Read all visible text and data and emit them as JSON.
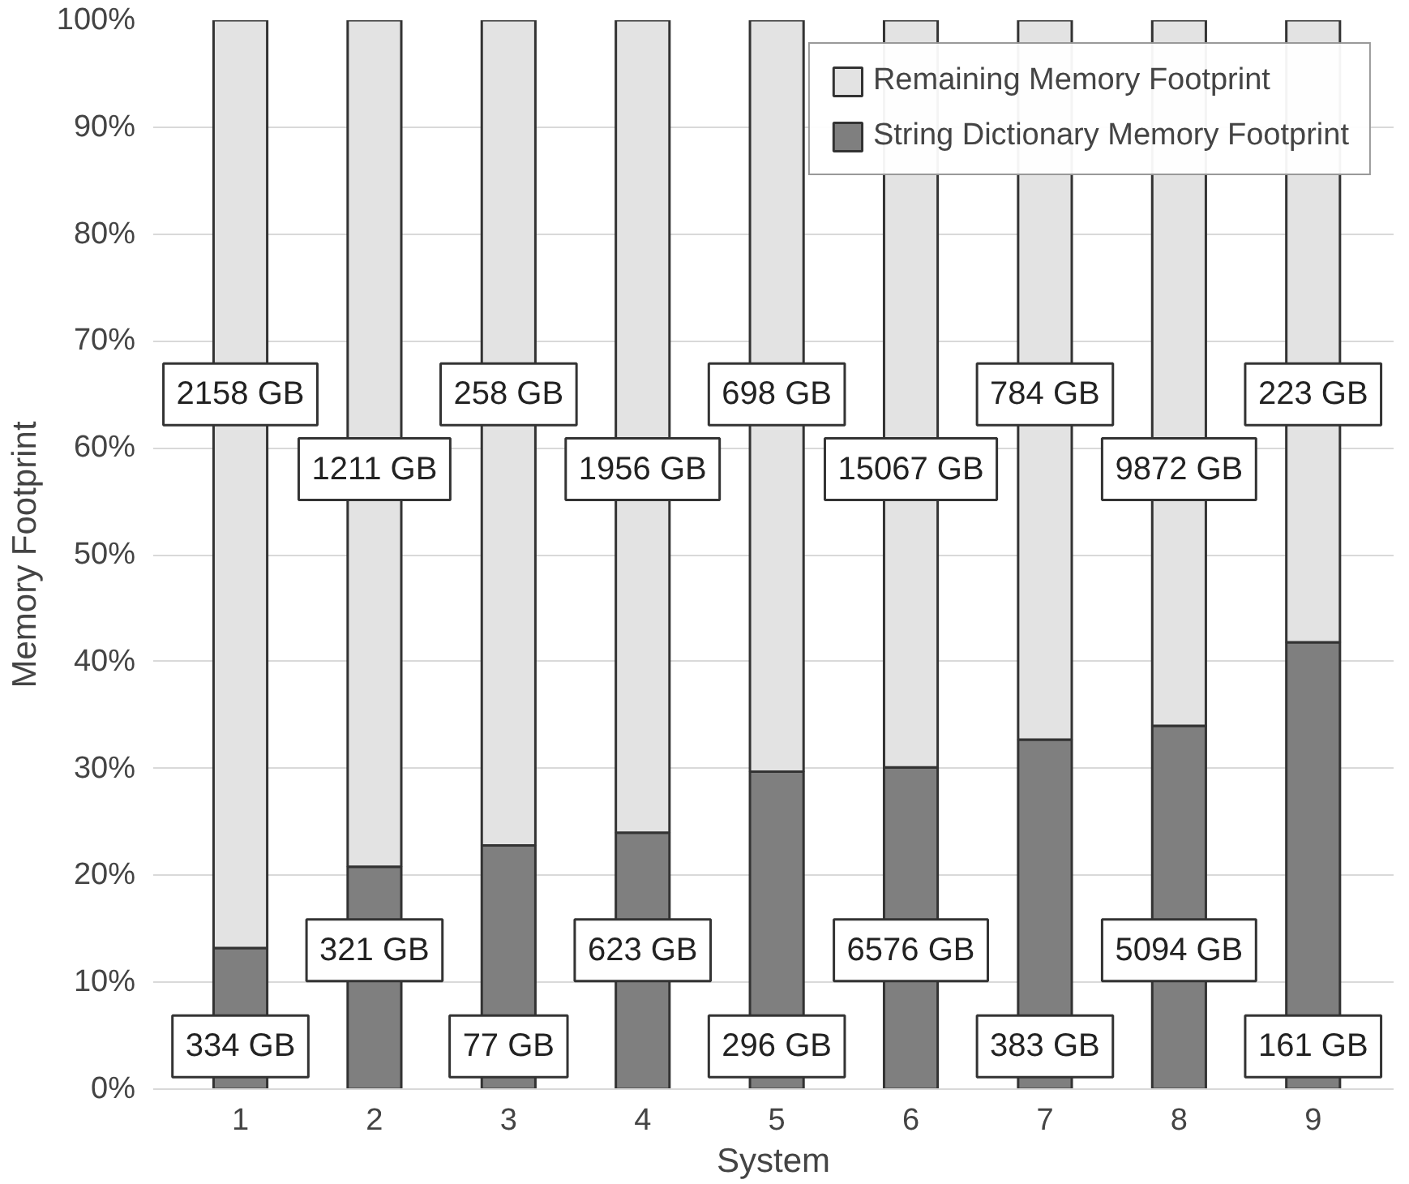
{
  "chart_data": {
    "type": "bar",
    "stacked": true,
    "xlabel": "System",
    "ylabel": "Memory Footprint",
    "categories": [
      "1",
      "2",
      "3",
      "4",
      "5",
      "6",
      "7",
      "8",
      "9"
    ],
    "series": [
      {
        "name": "String Dictionary Memory Footprint",
        "color": "#7f7f7f",
        "values": [
          13.2,
          20.8,
          22.8,
          24.0,
          29.7,
          30.1,
          32.7,
          34.0,
          41.8
        ]
      },
      {
        "name": "Remaining Memory Footprint",
        "color": "#e3e3e3",
        "values": [
          86.8,
          79.2,
          77.2,
          76.0,
          70.3,
          69.9,
          67.3,
          66.0,
          58.2
        ]
      }
    ],
    "annotations": [
      "334 GB",
      "321 GB",
      "77 GB",
      "623 GB",
      "296 GB",
      "6576 GB",
      "383 GB",
      "5094 GB",
      "161 GB",
      "2158 GB",
      "1211 GB",
      "258 GB",
      "1956 GB",
      "698 GB",
      "15067 GB",
      "784 GB",
      "9872 GB",
      "223 GB"
    ],
    "ylim": [
      0,
      100
    ],
    "yticks": [
      {
        "value": 0,
        "label": "0%"
      },
      {
        "value": 10,
        "label": "10%"
      },
      {
        "value": 20,
        "label": "20%"
      },
      {
        "value": 30,
        "label": "30%"
      },
      {
        "value": 40,
        "label": "40%"
      },
      {
        "value": 50,
        "label": "50%"
      },
      {
        "value": 60,
        "label": "60%"
      },
      {
        "value": 70,
        "label": "70%"
      },
      {
        "value": 80,
        "label": "80%"
      },
      {
        "value": 90,
        "label": "90%"
      },
      {
        "value": 100,
        "label": "100%"
      }
    ],
    "grid": "y",
    "legend": "top right"
  }
}
